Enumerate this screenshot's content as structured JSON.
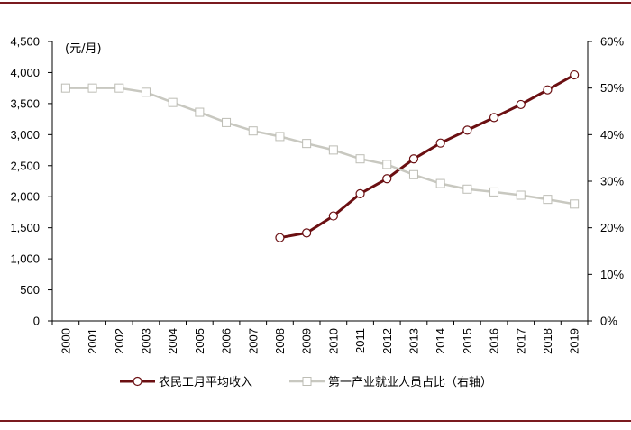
{
  "chart_data": {
    "type": "line",
    "categories": [
      "2000",
      "2001",
      "2002",
      "2003",
      "2004",
      "2005",
      "2006",
      "2007",
      "2008",
      "2009",
      "2010",
      "2011",
      "2012",
      "2013",
      "2014",
      "2015",
      "2016",
      "2017",
      "2018",
      "2019"
    ],
    "y_left": {
      "unit_label": "(元/月)",
      "ylim": [
        0,
        4500
      ],
      "ticks": [
        0,
        500,
        1000,
        1500,
        2000,
        2500,
        3000,
        3500,
        4000,
        4500
      ],
      "tick_labels": [
        "0",
        "500",
        "1,000",
        "1,500",
        "2,000",
        "2,500",
        "3,000",
        "3,500",
        "4,000",
        "4,500"
      ]
    },
    "y_right": {
      "ylim": [
        0,
        60
      ],
      "ticks": [
        0,
        10,
        20,
        30,
        40,
        50,
        60
      ],
      "tick_labels": [
        "0%",
        "10%",
        "20%",
        "30%",
        "40%",
        "50%",
        "60%"
      ]
    },
    "series": [
      {
        "name": "农民工月平均收入",
        "axis": "left",
        "color": "#6b0f12",
        "marker": "circle",
        "values": [
          null,
          null,
          null,
          null,
          null,
          null,
          null,
          null,
          1340,
          1417,
          1690,
          2049,
          2290,
          2609,
          2864,
          3072,
          3275,
          3485,
          3721,
          3962
        ]
      },
      {
        "name": "第一产业就业人员占比（右轴）",
        "axis": "right",
        "color": "#c8c8c0",
        "marker": "square",
        "values": [
          50.0,
          50.0,
          50.0,
          49.1,
          46.9,
          44.8,
          42.6,
          40.8,
          39.6,
          38.1,
          36.7,
          34.8,
          33.6,
          31.4,
          29.5,
          28.3,
          27.7,
          27.0,
          26.1,
          25.1
        ]
      }
    ],
    "grid": false,
    "legend_position": "bottom"
  }
}
